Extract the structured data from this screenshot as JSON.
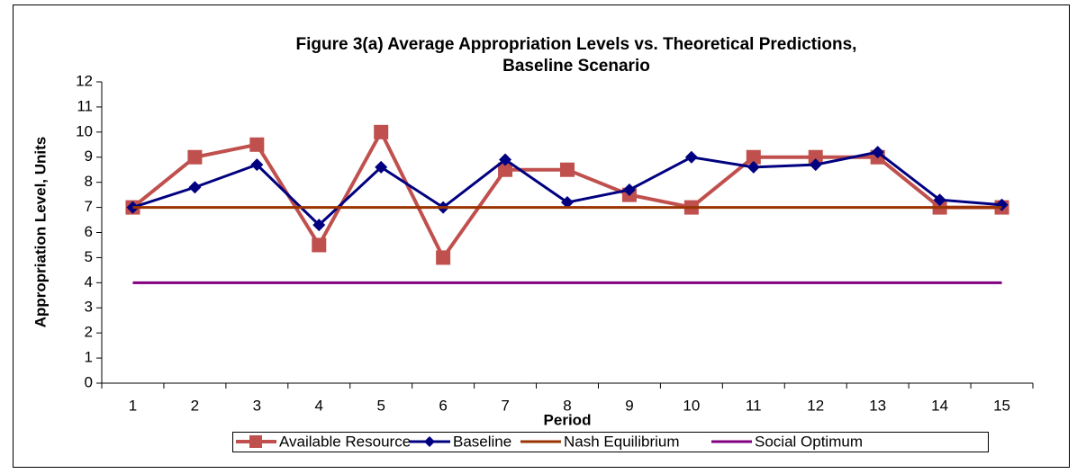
{
  "chart_data": {
    "type": "line",
    "title": [
      "Figure 3(a) Average Appropriation Levels vs. Theoretical Predictions,",
      "Baseline Scenario"
    ],
    "x_label": "Period",
    "y_label": "Appropriation Level, Units",
    "categories": [
      1,
      2,
      3,
      4,
      5,
      6,
      7,
      8,
      9,
      10,
      11,
      12,
      13,
      14,
      15
    ],
    "ylim": [
      0,
      12
    ],
    "yticks": [
      0,
      1,
      2,
      3,
      4,
      5,
      6,
      7,
      8,
      9,
      10,
      11,
      12
    ],
    "grid": false,
    "legend": "bottom",
    "series": [
      {
        "name": "Available Resource",
        "color": "#c0504d",
        "marker": "square",
        "values": [
          7,
          9,
          9.5,
          5.5,
          10,
          5,
          8.5,
          8.5,
          7.5,
          7,
          9,
          9,
          9,
          7,
          7
        ]
      },
      {
        "name": "Baseline",
        "color": "#000080",
        "marker": "diamond",
        "values": [
          7,
          7.8,
          8.7,
          6.3,
          8.6,
          7,
          8.9,
          7.2,
          7.7,
          9,
          8.6,
          8.7,
          9.2,
          7.3,
          7.1
        ]
      },
      {
        "name": "Nash Equilibrium",
        "color": "#993300",
        "marker": "none",
        "values": [
          7,
          7,
          7,
          7,
          7,
          7,
          7,
          7,
          7,
          7,
          7,
          7,
          7,
          7,
          7
        ]
      },
      {
        "name": "Social Optimum",
        "color": "#800080",
        "marker": "none",
        "values": [
          4,
          4,
          4,
          4,
          4,
          4,
          4,
          4,
          4,
          4,
          4,
          4,
          4,
          4,
          4
        ]
      }
    ]
  }
}
